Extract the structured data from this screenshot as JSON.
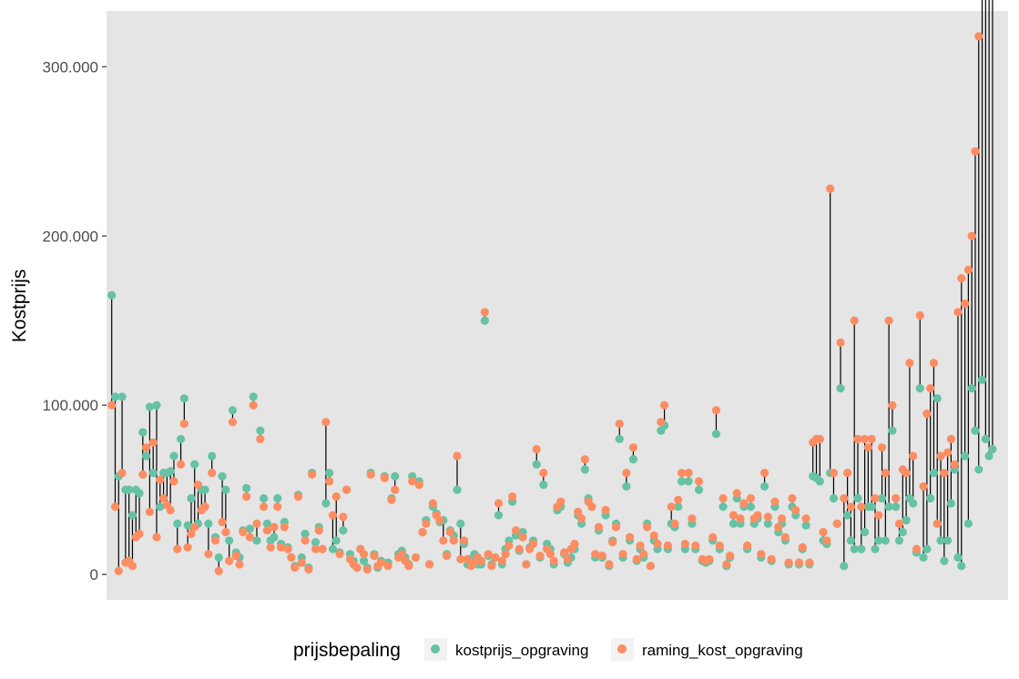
{
  "chart_data": {
    "type": "scatter",
    "subtype": "dumbbell",
    "title": "",
    "xlabel": "",
    "ylabel": "Kostprijs",
    "ylim": [
      -15000,
      333000
    ],
    "y_ticks": [
      0,
      100000,
      200000,
      300000
    ],
    "y_tick_labels": [
      "0",
      "100.000",
      "200.000",
      "300.000"
    ],
    "grid": false,
    "legend": {
      "position": "bottom",
      "title": "prijsbepaling",
      "entries": [
        "kostprijs_opgraving",
        "raming_kost_opgraving"
      ]
    },
    "colors": {
      "panel": "#e5e5e5",
      "kostprijs_opgraving": "#66c2a5",
      "raming_kost_opgraving": "#fc8d62",
      "segment": "#000000"
    },
    "x": [
      1,
      2,
      3,
      4,
      5,
      6,
      7,
      8,
      9,
      10,
      11,
      12,
      13,
      14,
      15,
      16,
      17,
      18,
      19,
      20,
      21,
      22,
      23,
      24,
      25,
      26,
      27,
      28,
      29,
      30,
      31,
      32,
      33,
      34,
      35,
      36,
      37,
      38,
      39,
      40,
      41,
      42,
      43,
      44,
      45,
      46,
      47,
      48,
      49,
      50,
      51,
      52,
      53,
      54,
      55,
      56,
      57,
      58,
      59,
      60,
      61,
      62,
      63,
      64,
      65,
      66,
      67,
      68,
      69,
      70,
      71,
      72,
      73,
      74,
      75,
      76,
      77,
      78,
      79,
      80,
      81,
      82,
      83,
      84,
      85,
      86,
      87,
      88,
      89,
      90,
      91,
      92,
      93,
      94,
      95,
      96,
      97,
      98,
      99,
      100,
      101,
      102,
      103,
      104,
      105,
      106,
      107,
      108,
      109,
      110,
      111,
      112,
      113,
      114,
      115,
      116,
      117,
      118,
      119,
      120,
      121,
      122,
      123,
      124,
      125,
      126,
      127,
      128,
      129,
      130,
      131,
      132,
      133,
      134,
      135,
      136,
      137,
      138,
      139,
      140,
      141,
      142,
      143,
      144,
      145,
      146,
      147,
      148,
      149,
      150,
      151,
      152,
      153,
      154,
      155,
      156,
      157,
      158,
      159,
      160,
      161,
      162,
      163,
      164,
      165,
      166,
      167,
      168,
      169,
      170,
      171,
      172,
      173,
      174,
      175,
      176,
      177,
      178,
      179,
      180,
      181,
      182,
      183,
      184,
      185,
      186,
      187,
      188,
      189,
      190,
      191,
      192,
      193,
      194,
      195,
      196,
      197,
      198,
      199,
      200,
      201,
      202,
      203,
      204,
      205,
      206,
      207,
      208,
      209,
      210,
      211,
      212,
      213,
      214,
      215,
      216,
      217,
      218,
      219,
      220,
      221,
      222,
      223,
      224,
      225,
      226,
      227,
      228,
      229,
      230,
      231,
      232,
      233,
      234,
      235,
      236,
      237,
      238,
      239,
      240,
      241,
      242,
      243,
      244,
      245,
      246,
      247,
      248,
      249,
      250,
      251,
      252,
      253,
      254,
      255,
      256,
      257,
      258,
      259,
      260
    ],
    "series": [
      {
        "name": "kostprijs_opgraving",
        "values": [
          165000,
          105000,
          58000,
          105000,
          50000,
          50000,
          35000,
          50000,
          48000,
          84000,
          70000,
          99000,
          60000,
          100000,
          40000,
          60000,
          60000,
          61000,
          70000,
          30000,
          80000,
          104000,
          29000,
          45000,
          65000,
          30000,
          50000,
          50000,
          30000,
          70000,
          22000,
          10000,
          58000,
          50000,
          20000,
          97000,
          13000,
          10000,
          26000,
          51000,
          27000,
          105000,
          20000,
          85000,
          45000,
          30000,
          20000,
          22000,
          45000,
          18000,
          31000,
          16000,
          10000,
          5000,
          47000,
          10000,
          24000,
          4000,
          60000,
          19000,
          28000,
          15000,
          42000,
          60000,
          15000,
          20000,
          13000,
          26000,
          50000,
          12000,
          8000,
          4000,
          15000,
          8000,
          4000,
          60000,
          12000,
          4000,
          8000,
          58000,
          7000,
          45000,
          58000,
          12000,
          14000,
          10000,
          6000,
          58000,
          10000,
          55000,
          25000,
          32000,
          6000,
          40000,
          36000,
          31000,
          32000,
          12000,
          26000,
          23000,
          50000,
          30000,
          18000,
          6000,
          9000,
          12000,
          6000,
          6000,
          150000,
          11000,
          6000,
          10000,
          35000,
          6000,
          15000,
          20000,
          43000,
          23000,
          14000,
          25000,
          6000,
          16000,
          20000,
          65000,
          10000,
          53000,
          18000,
          15000,
          6000,
          38000,
          40000,
          12000,
          7000,
          10000,
          15000,
          35000,
          30000,
          62000,
          45000,
          40000,
          10000,
          26000,
          10000,
          35000,
          5000,
          20000,
          30000,
          80000,
          10000,
          52000,
          20000,
          68000,
          8000,
          15000,
          10000,
          30000,
          5000,
          20000,
          15000,
          85000,
          88000,
          15000,
          30000,
          28000,
          40000,
          55000,
          15000,
          55000,
          30000,
          15000,
          50000,
          8000,
          7000,
          8000,
          20000,
          83000,
          15000,
          40000,
          5000,
          10000,
          30000,
          45000,
          30000,
          40000,
          15000,
          40000,
          30000,
          33000,
          10000,
          52000,
          30000,
          8000,
          40000,
          25000,
          30000,
          20000,
          6000,
          40000,
          35000,
          6000,
          15000,
          29000,
          6000,
          58000,
          57000,
          55000,
          20000,
          18000,
          60000,
          45000,
          30000,
          110000,
          5000,
          35000,
          20000,
          15000,
          45000,
          15000,
          25000,
          40000,
          40000,
          15000,
          20000,
          45000,
          20000,
          40000,
          85000,
          40000,
          20000,
          25000,
          32000,
          45000,
          42000,
          13000,
          110000,
          10000,
          15000,
          45000,
          60000,
          104000,
          20000,
          8000,
          20000,
          42000,
          62000,
          10000,
          5000,
          70000,
          30000,
          110000,
          85000,
          62000,
          115000,
          80000,
          70000,
          74000
        ],
        "_keep": true
      },
      {
        "name": "raming_kost_opgraving",
        "values": [
          100000,
          40000,
          2000,
          60000,
          7000,
          8000,
          5000,
          22000,
          24000,
          59000,
          75000,
          37000,
          78000,
          22000,
          56000,
          45000,
          41000,
          38000,
          55000,
          15000,
          65000,
          89000,
          16000,
          24000,
          28000,
          53000,
          38000,
          40000,
          12000,
          60000,
          20000,
          2000,
          31000,
          25000,
          8000,
          90000,
          11000,
          6000,
          25000,
          46000,
          22000,
          100000,
          30000,
          80000,
          40000,
          26000,
          16000,
          28000,
          40000,
          16000,
          28000,
          15000,
          10000,
          4000,
          46000,
          7000,
          20000,
          3000,
          59000,
          15000,
          26000,
          15000,
          90000,
          55000,
          35000,
          46000,
          12000,
          34000,
          50000,
          9000,
          6000,
          4000,
          15000,
          12000,
          3000,
          59000,
          11000,
          5000,
          7000,
          57000,
          5000,
          44000,
          50000,
          10000,
          12000,
          8000,
          5000,
          55000,
          10000,
          53000,
          25000,
          30000,
          6000,
          42000,
          35000,
          32000,
          20000,
          11000,
          25000,
          20000,
          70000,
          9000,
          20000,
          9000,
          5000,
          7000,
          10000,
          8000,
          155000,
          12000,
          5000,
          10000,
          42000,
          8000,
          12000,
          17000,
          46000,
          26000,
          15000,
          22000,
          6000,
          15000,
          18000,
          74000,
          11000,
          60000,
          15000,
          12000,
          8000,
          40000,
          43000,
          13000,
          9000,
          15000,
          18000,
          37000,
          33000,
          68000,
          43000,
          40000,
          12000,
          28000,
          11000,
          38000,
          6000,
          19000,
          28000,
          89000,
          12000,
          60000,
          22000,
          75000,
          9000,
          17000,
          12000,
          28000,
          5000,
          23000,
          18000,
          90000,
          100000,
          17000,
          40000,
          30000,
          44000,
          60000,
          18000,
          60000,
          33000,
          17000,
          55000,
          9000,
          8000,
          9000,
          22000,
          97000,
          17000,
          45000,
          6000,
          11000,
          35000,
          48000,
          33000,
          42000,
          17000,
          45000,
          33000,
          35000,
          12000,
          60000,
          34000,
          9000,
          43000,
          28000,
          33000,
          22000,
          7000,
          45000,
          38000,
          7000,
          16000,
          33000,
          7000,
          78000,
          80000,
          80000,
          25000,
          20000,
          228000,
          60000,
          30000,
          137000,
          45000,
          60000,
          40000,
          150000,
          80000,
          40000,
          80000,
          75000,
          80000,
          45000,
          35000,
          75000,
          60000,
          150000,
          100000,
          45000,
          30000,
          62000,
          60000,
          125000,
          70000,
          15000,
          153000,
          52000,
          95000,
          110000,
          125000,
          30000,
          70000,
          60000,
          72000,
          80000,
          65000,
          155000,
          175000,
          160000,
          180000,
          200000,
          250000,
          318000
        ],
        "_keep": true
      }
    ]
  }
}
